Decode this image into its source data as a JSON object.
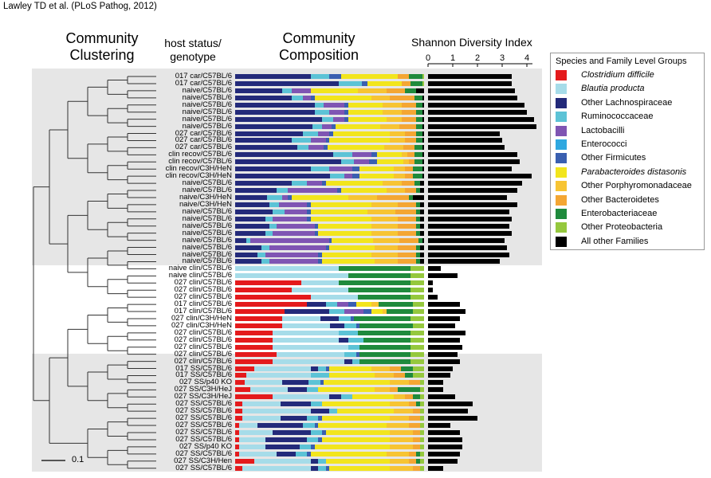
{
  "citation": "Lawley TD et al. (PLoS Pathog, 2012)",
  "headers": {
    "clustering": "Community Clustering",
    "host": "host status/ genotype",
    "composition": "Community Composition",
    "diversity": "Shannon Diversity Index"
  },
  "scale_bar_label": "0.1",
  "legend": {
    "title": "Species and Family Level Groups",
    "items": [
      {
        "label": "Clostridium difficile",
        "color": "#e41a1c",
        "italic": true
      },
      {
        "label": "Blautia producta",
        "color": "#a6dce9",
        "italic": true
      },
      {
        "label": "Other Lachnospiraceae",
        "color": "#232a7a",
        "italic": false
      },
      {
        "label": "Ruminococcaceae",
        "color": "#5cc3d6",
        "italic": false
      },
      {
        "label": "Lactobacilli",
        "color": "#7f55b3",
        "italic": false
      },
      {
        "label": "Enterococci",
        "color": "#2fa8e0",
        "italic": false
      },
      {
        "label": "Other Firmicutes",
        "color": "#3a5fb0",
        "italic": false
      },
      {
        "label": "Parabacteroides distasonis",
        "color": "#f2e51d",
        "italic": true
      },
      {
        "label": "Other Porphyromonadaceae",
        "color": "#f7c433",
        "italic": false
      },
      {
        "label": "Other Bacteroidetes",
        "color": "#f4a633",
        "italic": false
      },
      {
        "label": "Enterobacteriaceae",
        "color": "#1f8a3c",
        "italic": false
      },
      {
        "label": "Other Proteobacteria",
        "color": "#95c83d",
        "italic": false
      },
      {
        "label": "All other Families",
        "color": "#000000",
        "italic": false
      }
    ]
  },
  "chart_data": {
    "type": "bar",
    "title": "",
    "diversity_axis": {
      "label": "Shannon Diversity Index",
      "ticks": [
        "0",
        "1",
        "2",
        "3",
        "4"
      ],
      "range": [
        0,
        4.5
      ]
    },
    "rows": [
      {
        "label": "017 car/C57BL/6",
        "diversity": 3.4,
        "composition": [
          0,
          0,
          0.4,
          0.1,
          0,
          0,
          0.06,
          0.3,
          0,
          0.06,
          0.07,
          0.01,
          0
        ]
      },
      {
        "label": "017 car/C57BL/6",
        "diversity": 3.4,
        "composition": [
          0,
          0,
          0.55,
          0.12,
          0,
          0,
          0.03,
          0.18,
          0,
          0.05,
          0.06,
          0.01,
          0
        ]
      },
      {
        "label": "naive/C57BL/6",
        "diversity": 3.5,
        "composition": [
          0,
          0,
          0.25,
          0.05,
          0.1,
          0,
          0,
          0.25,
          0.15,
          0.1,
          0.06,
          0,
          0.04
        ]
      },
      {
        "label": "naive/C57BL/6",
        "diversity": 3.6,
        "composition": [
          0,
          0,
          0.3,
          0.06,
          0.04,
          0,
          0.02,
          0.3,
          0.1,
          0.13,
          0.04,
          0,
          0.01
        ]
      },
      {
        "label": "naive/C57BL/6",
        "diversity": 3.9,
        "composition": [
          0,
          0,
          0.42,
          0.05,
          0.11,
          0,
          0.02,
          0.18,
          0.1,
          0.08,
          0.03,
          0,
          0.01
        ]
      },
      {
        "label": "naive/C57BL/6",
        "diversity": 4.0,
        "composition": [
          0,
          0,
          0.42,
          0.08,
          0.08,
          0,
          0.02,
          0.18,
          0.1,
          0.08,
          0.03,
          0,
          0.01
        ]
      },
      {
        "label": "naive/C57BL/6",
        "diversity": 4.3,
        "composition": [
          0,
          0,
          0.46,
          0.06,
          0.06,
          0,
          0.02,
          0.2,
          0.08,
          0.08,
          0.03,
          0,
          0.01
        ]
      },
      {
        "label": "naive/C57BL/6",
        "diversity": 4.4,
        "composition": [
          0,
          0,
          0.41,
          0.05,
          0.05,
          0,
          0.02,
          0.24,
          0.1,
          0.09,
          0.03,
          0,
          0.01
        ]
      },
      {
        "label": "027 car/C57BL/6",
        "diversity": 2.9,
        "composition": [
          0,
          0,
          0.36,
          0.08,
          0.06,
          0,
          0.02,
          0.3,
          0.08,
          0.06,
          0.03,
          0,
          0.01
        ]
      },
      {
        "label": "027 car/C57BL/6",
        "diversity": 3.0,
        "composition": [
          0,
          0,
          0.3,
          0.1,
          0.08,
          0,
          0.02,
          0.32,
          0.08,
          0.06,
          0.03,
          0,
          0.01
        ]
      },
      {
        "label": "027 car/C57BL/6",
        "diversity": 3.1,
        "composition": [
          0,
          0,
          0.33,
          0.06,
          0.08,
          0,
          0.02,
          0.3,
          0.1,
          0.06,
          0.04,
          0,
          0.01
        ]
      },
      {
        "label": "clin recov/C57BL/6",
        "diversity": 3.6,
        "composition": [
          0,
          0,
          0.52,
          0.1,
          0.1,
          0,
          0.03,
          0.13,
          0.03,
          0.04,
          0.04,
          0,
          0.01
        ]
      },
      {
        "label": "clin recov/C57BL/6",
        "diversity": 3.7,
        "composition": [
          0,
          0,
          0.56,
          0.07,
          0.08,
          0,
          0.04,
          0.14,
          0.03,
          0.03,
          0.04,
          0,
          0.01
        ]
      },
      {
        "label": "clin recov/C3H/HeN",
        "diversity": 3.4,
        "composition": [
          0,
          0,
          0.4,
          0.1,
          0.12,
          0,
          0.04,
          0.18,
          0.06,
          0.04,
          0.05,
          0,
          0.01
        ]
      },
      {
        "label": "clin recov/C3H/HeN",
        "diversity": 4.2,
        "composition": [
          0,
          0,
          0.5,
          0.08,
          0.04,
          0,
          0.04,
          0.18,
          0.06,
          0.04,
          0.05,
          0,
          0.01
        ]
      },
      {
        "label": "naive/C57BL/6",
        "diversity": 3.8,
        "composition": [
          0,
          0,
          0.3,
          0.08,
          0.08,
          0,
          0.02,
          0.3,
          0.1,
          0.07,
          0.03,
          0,
          0.02
        ]
      },
      {
        "label": "naive/C57BL/6",
        "diversity": 3.6,
        "composition": [
          0,
          0,
          0.22,
          0.06,
          0.26,
          0,
          0.02,
          0.24,
          0.1,
          0.06,
          0.02,
          0,
          0.02
        ]
      },
      {
        "label": "naive/C3H/HeN",
        "diversity": 3.2,
        "composition": [
          0,
          0,
          0.17,
          0.08,
          0.03,
          0,
          0.02,
          0.3,
          0.15,
          0.17,
          0.02,
          0,
          0.06
        ]
      },
      {
        "label": "naive/C3H/HeN",
        "diversity": 3.6,
        "composition": [
          0,
          0,
          0.18,
          0.05,
          0.15,
          0,
          0.02,
          0.32,
          0.14,
          0.1,
          0.02,
          0,
          0.02
        ]
      },
      {
        "label": "naive/C57BL/6",
        "diversity": 3.3,
        "composition": [
          0,
          0,
          0.2,
          0.06,
          0.12,
          0,
          0.02,
          0.3,
          0.15,
          0.11,
          0.02,
          0,
          0.02
        ]
      },
      {
        "label": "naive/C57BL/6",
        "diversity": 3.4,
        "composition": [
          0,
          0,
          0.16,
          0.04,
          0.18,
          0,
          0.02,
          0.32,
          0.14,
          0.1,
          0.02,
          0,
          0.02
        ]
      },
      {
        "label": "naive/C57BL/6",
        "diversity": 3.3,
        "composition": [
          0,
          0,
          0.18,
          0.04,
          0.2,
          0,
          0.02,
          0.28,
          0.14,
          0.1,
          0.02,
          0,
          0.02
        ]
      },
      {
        "label": "naive/C57BL/6",
        "diversity": 3.4,
        "composition": [
          0,
          0,
          0.16,
          0.04,
          0.22,
          0,
          0.02,
          0.28,
          0.14,
          0.1,
          0.02,
          0,
          0.02
        ]
      },
      {
        "label": "naive/C57BL/6",
        "diversity": 3.1,
        "composition": [
          0,
          0,
          0.06,
          0.02,
          0.42,
          0,
          0.01,
          0.22,
          0.14,
          0.1,
          0.02,
          0,
          0.01
        ]
      },
      {
        "label": "naive/C57BL/6",
        "diversity": 3.2,
        "composition": [
          0,
          0,
          0.14,
          0.04,
          0.3,
          0,
          0.02,
          0.24,
          0.12,
          0.1,
          0.02,
          0,
          0.02
        ]
      },
      {
        "label": "naive/C57BL/6",
        "diversity": 3.3,
        "composition": [
          0,
          0,
          0.12,
          0.04,
          0.28,
          0,
          0.02,
          0.26,
          0.14,
          0.1,
          0.02,
          0,
          0.02
        ]
      },
      {
        "label": "naive/C57BL/6",
        "diversity": 2.9,
        "composition": [
          0,
          0,
          0.14,
          0.04,
          0.26,
          0,
          0.02,
          0.28,
          0.12,
          0.1,
          0.02,
          0,
          0.02
        ]
      },
      {
        "label": "naive clin/C57BL/6",
        "diversity": 0.5,
        "composition": [
          0,
          0.55,
          0,
          0,
          0,
          0,
          0,
          0,
          0,
          0,
          0.38,
          0.07,
          0
        ]
      },
      {
        "label": "naive clin/C57BL/6",
        "diversity": 1.2,
        "composition": [
          0,
          0.6,
          0,
          0,
          0,
          0,
          0,
          0,
          0,
          0,
          0.33,
          0.07,
          0
        ]
      },
      {
        "label": "027 clin/C57BL/6",
        "diversity": 0.2,
        "composition": [
          0.35,
          0.2,
          0,
          0,
          0,
          0,
          0,
          0,
          0,
          0,
          0.38,
          0.07,
          0
        ]
      },
      {
        "label": "027 clin/C57BL/6",
        "diversity": 0.2,
        "composition": [
          0.3,
          0.3,
          0,
          0,
          0,
          0,
          0,
          0,
          0,
          0,
          0.33,
          0.07,
          0
        ]
      },
      {
        "label": "027 clin/C57BL/6",
        "diversity": 0.4,
        "composition": [
          0.4,
          0.25,
          0,
          0,
          0,
          0,
          0,
          0,
          0,
          0,
          0.28,
          0.07,
          0
        ]
      },
      {
        "label": "017 clin/C57BL/6",
        "diversity": 1.3,
        "composition": [
          0.38,
          0,
          0.1,
          0.06,
          0.06,
          0,
          0.04,
          0.08,
          0.04,
          0,
          0.18,
          0.06,
          0
        ]
      },
      {
        "label": "017 clin/C57BL/6",
        "diversity": 1.5,
        "composition": [
          0.26,
          0,
          0.24,
          0.08,
          0.1,
          0,
          0.04,
          0.06,
          0.02,
          0,
          0.14,
          0.06,
          0
        ]
      },
      {
        "label": "027 clin/C3H/HeN",
        "diversity": 1.3,
        "composition": [
          0.25,
          0.2,
          0.1,
          0.06,
          0,
          0,
          0.02,
          0,
          0,
          0,
          0.3,
          0.07,
          0
        ]
      },
      {
        "label": "027 clin/C3H/HeN",
        "diversity": 1.1,
        "composition": [
          0.25,
          0.25,
          0.08,
          0.06,
          0,
          0,
          0.02,
          0,
          0,
          0,
          0.28,
          0.06,
          0
        ]
      },
      {
        "label": "027 clin/C57BL/6",
        "diversity": 1.5,
        "composition": [
          0.2,
          0.35,
          0,
          0.1,
          0,
          0,
          0,
          0,
          0,
          0,
          0.28,
          0.07,
          0
        ]
      },
      {
        "label": "027 clin/C57BL/6",
        "diversity": 1.3,
        "composition": [
          0.2,
          0.35,
          0.05,
          0.08,
          0,
          0,
          0,
          0,
          0,
          0,
          0.25,
          0.07,
          0
        ]
      },
      {
        "label": "027 clin/C57BL/6",
        "diversity": 1.4,
        "composition": [
          0.2,
          0.4,
          0,
          0.06,
          0,
          0,
          0,
          0,
          0,
          0,
          0.27,
          0.07,
          0
        ]
      },
      {
        "label": "027 clin/C57BL/6",
        "diversity": 1.2,
        "composition": [
          0.22,
          0.36,
          0,
          0.06,
          0,
          0,
          0.02,
          0,
          0,
          0,
          0.27,
          0.07,
          0
        ]
      },
      {
        "label": "027 clin/C57BL/6",
        "diversity": 1.3,
        "composition": [
          0.2,
          0.38,
          0.04,
          0.04,
          0,
          0,
          0,
          0,
          0,
          0,
          0.27,
          0.07,
          0
        ]
      },
      {
        "label": "017 SS/C57BL/6",
        "diversity": 1.0,
        "composition": [
          0.1,
          0.3,
          0.04,
          0.04,
          0,
          0,
          0.02,
          0.22,
          0.1,
          0.06,
          0.06,
          0.06,
          0
        ]
      },
      {
        "label": "017 SS/C57BL/6",
        "diversity": 0.9,
        "composition": [
          0.06,
          0.34,
          0,
          0.1,
          0,
          0,
          0,
          0.24,
          0.1,
          0.06,
          0.04,
          0.06,
          0
        ]
      },
      {
        "label": "027 SS/p40 KO",
        "diversity": 0.6,
        "composition": [
          0.05,
          0.2,
          0.14,
          0.06,
          0,
          0,
          0.02,
          0.35,
          0.1,
          0.06,
          0,
          0.02,
          0
        ]
      },
      {
        "label": "027 SS/C3H/HeJ",
        "diversity": 0.6,
        "composition": [
          0.08,
          0.2,
          0.1,
          0.06,
          0,
          0,
          0,
          0.3,
          0.08,
          0.04,
          0.12,
          0.02,
          0
        ]
      },
      {
        "label": "027 SS/C3H/HeJ",
        "diversity": 1.1,
        "composition": [
          0.2,
          0.3,
          0.06,
          0.06,
          0,
          0,
          0,
          0.22,
          0.06,
          0.04,
          0.04,
          0.02,
          0
        ]
      },
      {
        "label": "027 SS/C57BL/6",
        "diversity": 1.8,
        "composition": [
          0.04,
          0.2,
          0.16,
          0.06,
          0,
          0,
          0,
          0.36,
          0.1,
          0.04,
          0.02,
          0.02,
          0
        ]
      },
      {
        "label": "027 SS/C57BL/6",
        "diversity": 1.6,
        "composition": [
          0.04,
          0.36,
          0.1,
          0.04,
          0,
          0,
          0,
          0.3,
          0.1,
          0.04,
          0,
          0.02,
          0
        ]
      },
      {
        "label": "027 SS/C57BL/6",
        "diversity": 2.0,
        "composition": [
          0.04,
          0.2,
          0.14,
          0.06,
          0,
          0,
          0.02,
          0.36,
          0.1,
          0.06,
          0,
          0.02,
          0
        ]
      },
      {
        "label": "027 SS/C57BL/6",
        "diversity": 0.9,
        "composition": [
          0.02,
          0.1,
          0.24,
          0.06,
          0,
          0,
          0.02,
          0.36,
          0.12,
          0.06,
          0,
          0.02,
          0
        ]
      },
      {
        "label": "027 SS/C57BL/6",
        "diversity": 1.3,
        "composition": [
          0.02,
          0.18,
          0.2,
          0.06,
          0,
          0,
          0.02,
          0.34,
          0.12,
          0.04,
          0,
          0.02,
          0
        ]
      },
      {
        "label": "027 SS/C57BL/6",
        "diversity": 1.4,
        "composition": [
          0.02,
          0.14,
          0.22,
          0.06,
          0,
          0,
          0.02,
          0.36,
          0.12,
          0.04,
          0,
          0.02,
          0
        ]
      },
      {
        "label": "027 SS/p40 KO",
        "diversity": 1.4,
        "composition": [
          0.02,
          0.14,
          0.18,
          0.06,
          0,
          0,
          0.02,
          0.4,
          0.12,
          0.04,
          0,
          0.02,
          0
        ]
      },
      {
        "label": "027 SS/C57BL/6",
        "diversity": 1.3,
        "composition": [
          0.02,
          0.2,
          0.1,
          0.06,
          0,
          0,
          0.02,
          0.4,
          0.12,
          0.04,
          0.02,
          0.02,
          0
        ]
      },
      {
        "label": "027 SS/C3H/Hen",
        "diversity": 1.2,
        "composition": [
          0.1,
          0.3,
          0.04,
          0.04,
          0,
          0,
          0,
          0.34,
          0.1,
          0.04,
          0.02,
          0.02,
          0
        ]
      },
      {
        "label": "027 SS/C57BL/6",
        "diversity": 0.6,
        "composition": [
          0.04,
          0.36,
          0.04,
          0.04,
          0,
          0,
          0.02,
          0.32,
          0.12,
          0.04,
          0,
          0.02,
          0
        ]
      }
    ]
  }
}
